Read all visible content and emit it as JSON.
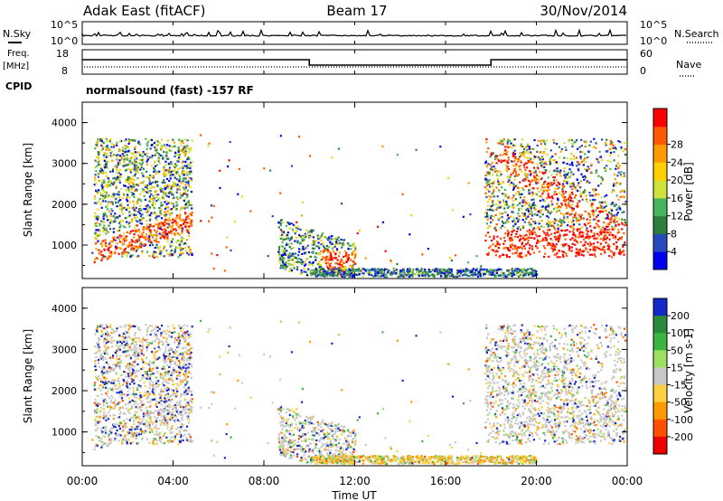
{
  "header": {
    "station": "Adak East (fitACF)",
    "beam": "Beam 17",
    "date": "30/Nov/2014"
  },
  "left_labels": {
    "nsky": "N.Sky",
    "freq": "Freq.",
    "freq_unit": "[MHz]",
    "cpid": "CPID"
  },
  "right_labels": {
    "nsearch": "N.Search",
    "nave": "Nave"
  },
  "noise_ticks": {
    "top": "10^5",
    "bottom": "10^0"
  },
  "freq_ticks": [
    "18",
    "8"
  ],
  "nave_ticks": [
    "60",
    "0"
  ],
  "cpid_text": "normalsound (fast) -157 RF",
  "x_axis": {
    "label": "Time UT",
    "ticks": [
      "00:00",
      "04:00",
      "08:00",
      "12:00",
      "16:00",
      "20:00",
      "00:00"
    ]
  },
  "chart_data": [
    {
      "type": "heatmap",
      "quantity": "Power",
      "ylabel": "Slant Range [km]",
      "xlabel": "",
      "x_range_hours": [
        0,
        24
      ],
      "ylim": [
        180,
        4500
      ],
      "y_ticks": [
        "1000",
        "2000",
        "3000",
        "4000"
      ],
      "colorbar": {
        "label": "Power [dB]",
        "range": [
          0,
          32
        ],
        "ticks": [
          "4",
          "8",
          "12",
          "16",
          "20",
          "24",
          "28"
        ],
        "colors": [
          "#0000ee",
          "#2848c0",
          "#2f7d3c",
          "#46b45a",
          "#cfe23c",
          "#ffd000",
          "#ff9a00",
          "#ff5a00",
          "#ff0000"
        ]
      }
    },
    {
      "type": "heatmap",
      "quantity": "Velocity",
      "ylabel": "Slant Range [km]",
      "xlabel": "Time UT",
      "x_range_hours": [
        0,
        24
      ],
      "ylim": [
        180,
        4500
      ],
      "y_ticks": [
        "1000",
        "2000",
        "3000",
        "4000"
      ],
      "colorbar": {
        "label": "Velocity [m s-1]",
        "ticks": [
          "200",
          "100",
          "50",
          "15",
          "-15",
          "-50",
          "-100",
          "-200"
        ],
        "colors": [
          "#1428c8",
          "#2a8a3a",
          "#3cb440",
          "#9be060",
          "#c8c8c8",
          "#ffd040",
          "#ff9a00",
          "#ff5000",
          "#ee0000"
        ]
      }
    }
  ]
}
